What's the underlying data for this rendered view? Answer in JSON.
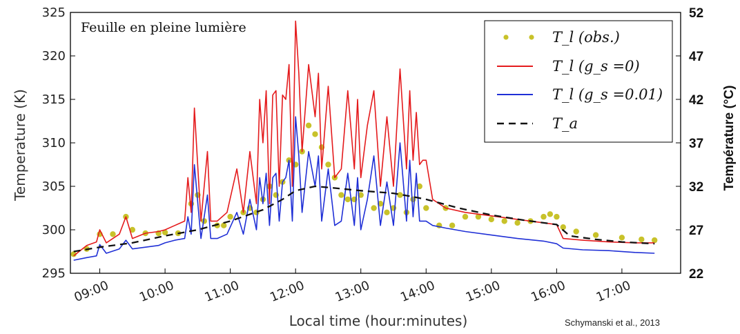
{
  "chart_data": {
    "type": "line",
    "annotation": "Feuille en pleine lumière",
    "credit": "Schymanski et al., 2013",
    "xlabel": "Local time (hour:minutes)",
    "ylabel": "Temperature (K)",
    "ylabel_right": "Température (°C)",
    "xlim": [
      8.55,
      17.9
    ],
    "ylim": [
      295,
      325
    ],
    "x_ticks": [
      9,
      10,
      11,
      12,
      13,
      14,
      15,
      16,
      17
    ],
    "x_tick_labels": [
      "09:00",
      "10:00",
      "11:00",
      "12:00",
      "13:00",
      "14:00",
      "15:00",
      "16:00",
      "17:00"
    ],
    "y_ticks": [
      295,
      300,
      305,
      310,
      315,
      320,
      325
    ],
    "y_tick_labels": [
      "295",
      "300",
      "305",
      "310",
      "315",
      "320",
      "325"
    ],
    "y2_ticks": [
      22,
      27,
      32,
      37,
      42,
      47,
      52
    ],
    "y2_tick_labels": [
      "22",
      "27",
      "32",
      "37",
      "42",
      "47",
      "52"
    ],
    "legend_position": "top-right",
    "grid": false,
    "colors": {
      "obs": "#c8c22a",
      "gs0": "#e41a1c",
      "gs001": "#1f2fd6",
      "ta": "#111111"
    },
    "series": [
      {
        "name": "T_l (obs.)",
        "style": "dots",
        "x": [
          8.6,
          8.8,
          9.0,
          9.2,
          9.4,
          9.5,
          9.7,
          9.9,
          10.0,
          10.2,
          10.4,
          10.5,
          10.6,
          10.8,
          10.9,
          11.0,
          11.2,
          11.3,
          11.4,
          11.5,
          11.6,
          11.7,
          11.8,
          11.9,
          12.0,
          12.1,
          12.2,
          12.3,
          12.4,
          12.5,
          12.6,
          12.7,
          12.8,
          12.9,
          13.0,
          13.2,
          13.3,
          13.4,
          13.5,
          13.6,
          13.7,
          13.8,
          13.9,
          14.0,
          14.2,
          14.3,
          14.4,
          14.6,
          14.8,
          15.0,
          15.2,
          15.4,
          15.6,
          15.8,
          15.9,
          16.0,
          16.1,
          16.3,
          16.6,
          17.0,
          17.3,
          17.5
        ],
        "y": [
          297.2,
          297.8,
          299.5,
          299.5,
          301.5,
          300.0,
          299.6,
          299.6,
          299.7,
          299.6,
          303.0,
          304.0,
          301.0,
          300.5,
          300.5,
          301.5,
          302.0,
          302.5,
          302.0,
          303.5,
          305.0,
          304.0,
          305.5,
          308.0,
          307.5,
          309.0,
          312.0,
          311.0,
          309.5,
          307.5,
          306.0,
          304.0,
          303.5,
          303.5,
          304.0,
          302.5,
          303.0,
          302.0,
          302.5,
          304.0,
          302.0,
          303.5,
          305.0,
          302.5,
          300.5,
          302.5,
          300.5,
          301.5,
          301.5,
          301.2,
          301.0,
          300.8,
          301.0,
          301.5,
          301.8,
          301.5,
          300.3,
          299.8,
          299.4,
          299.1,
          298.9,
          298.8
        ]
      },
      {
        "name": "T_l (g_s =0)",
        "style": "solid",
        "x": [
          8.6,
          8.8,
          8.95,
          9.0,
          9.1,
          9.3,
          9.4,
          9.5,
          9.7,
          9.9,
          10.0,
          10.15,
          10.3,
          10.35,
          10.4,
          10.45,
          10.55,
          10.65,
          10.7,
          10.8,
          10.95,
          11.1,
          11.2,
          11.3,
          11.4,
          11.45,
          11.5,
          11.55,
          11.6,
          11.65,
          11.7,
          11.75,
          11.8,
          11.85,
          11.9,
          11.95,
          12.0,
          12.05,
          12.1,
          12.2,
          12.3,
          12.35,
          12.4,
          12.5,
          12.6,
          12.7,
          12.8,
          12.9,
          12.95,
          13.0,
          13.1,
          13.2,
          13.3,
          13.4,
          13.5,
          13.6,
          13.7,
          13.75,
          13.8,
          13.85,
          13.9,
          13.95,
          14.0,
          14.1,
          14.3,
          14.6,
          15.0,
          15.4,
          15.8,
          16.0,
          16.1,
          16.4,
          16.8,
          17.2,
          17.5
        ],
        "y": [
          297.0,
          298.2,
          298.6,
          300.0,
          298.5,
          299.5,
          301.5,
          299.0,
          299.6,
          299.8,
          300.0,
          300.5,
          301.0,
          306.0,
          302.0,
          314.0,
          301.0,
          309.0,
          301.0,
          301.0,
          302.0,
          307.0,
          302.0,
          309.0,
          303.0,
          315.0,
          310.0,
          316.0,
          303.0,
          315.5,
          316.0,
          305.0,
          315.5,
          315.0,
          319.0,
          305.0,
          324.0,
          318.0,
          309.0,
          319.0,
          313.0,
          318.0,
          307.0,
          316.5,
          306.0,
          307.0,
          316.0,
          307.0,
          315.0,
          306.0,
          312.0,
          316.0,
          305.0,
          313.0,
          305.0,
          318.5,
          307.0,
          316.0,
          308.0,
          313.5,
          307.5,
          308.0,
          308.0,
          303.5,
          302.5,
          302.0,
          301.6,
          301.2,
          300.8,
          300.6,
          299.0,
          298.8,
          298.6,
          298.5,
          298.5
        ]
      },
      {
        "name": "T_l (g_s =0.01)",
        "style": "solid",
        "x": [
          8.6,
          8.8,
          8.95,
          9.0,
          9.1,
          9.3,
          9.4,
          9.5,
          9.7,
          9.9,
          10.0,
          10.15,
          10.3,
          10.35,
          10.4,
          10.45,
          10.55,
          10.65,
          10.7,
          10.8,
          10.95,
          11.1,
          11.2,
          11.3,
          11.4,
          11.45,
          11.5,
          11.55,
          11.6,
          11.65,
          11.7,
          11.75,
          11.8,
          11.85,
          11.9,
          11.95,
          12.0,
          12.05,
          12.1,
          12.2,
          12.3,
          12.35,
          12.4,
          12.5,
          12.6,
          12.7,
          12.8,
          12.9,
          12.95,
          13.0,
          13.1,
          13.2,
          13.3,
          13.4,
          13.5,
          13.6,
          13.7,
          13.75,
          13.8,
          13.85,
          13.9,
          13.95,
          14.0,
          14.1,
          14.3,
          14.6,
          15.0,
          15.4,
          15.8,
          16.0,
          16.1,
          16.4,
          16.8,
          17.2,
          17.5
        ],
        "y": [
          296.5,
          296.8,
          297.0,
          298.3,
          297.3,
          297.8,
          298.8,
          297.8,
          298.0,
          298.2,
          298.5,
          298.8,
          299.0,
          301.5,
          299.5,
          307.5,
          299.0,
          304.0,
          299.0,
          299.0,
          299.5,
          302.0,
          299.5,
          303.5,
          300.0,
          306.0,
          303.0,
          306.5,
          300.5,
          306.0,
          306.5,
          301.0,
          305.5,
          306.0,
          308.0,
          301.0,
          313.0,
          308.5,
          302.0,
          309.0,
          305.0,
          308.5,
          301.0,
          307.0,
          300.5,
          301.0,
          306.5,
          300.5,
          306.0,
          300.0,
          303.5,
          308.5,
          300.5,
          305.5,
          300.5,
          310.0,
          301.0,
          308.0,
          301.5,
          306.5,
          301.0,
          301.0,
          301.0,
          300.5,
          300.2,
          299.8,
          299.4,
          299.0,
          298.7,
          298.4,
          297.9,
          297.7,
          297.6,
          297.4,
          297.3
        ]
      },
      {
        "name": "T_a",
        "style": "dashed",
        "x": [
          8.6,
          9.0,
          9.5,
          10.0,
          10.5,
          11.0,
          11.5,
          11.8,
          12.0,
          12.3,
          12.6,
          13.0,
          13.5,
          13.8,
          14.0,
          14.5,
          15.0,
          15.5,
          16.0,
          16.2,
          16.6,
          17.0,
          17.5
        ],
        "y": [
          297.5,
          298.0,
          298.5,
          299.3,
          300.0,
          301.0,
          302.3,
          303.5,
          304.5,
          305.0,
          304.8,
          304.5,
          304.2,
          303.8,
          303.5,
          302.5,
          301.7,
          301.1,
          300.6,
          299.3,
          298.9,
          298.6,
          298.4
        ]
      }
    ]
  }
}
